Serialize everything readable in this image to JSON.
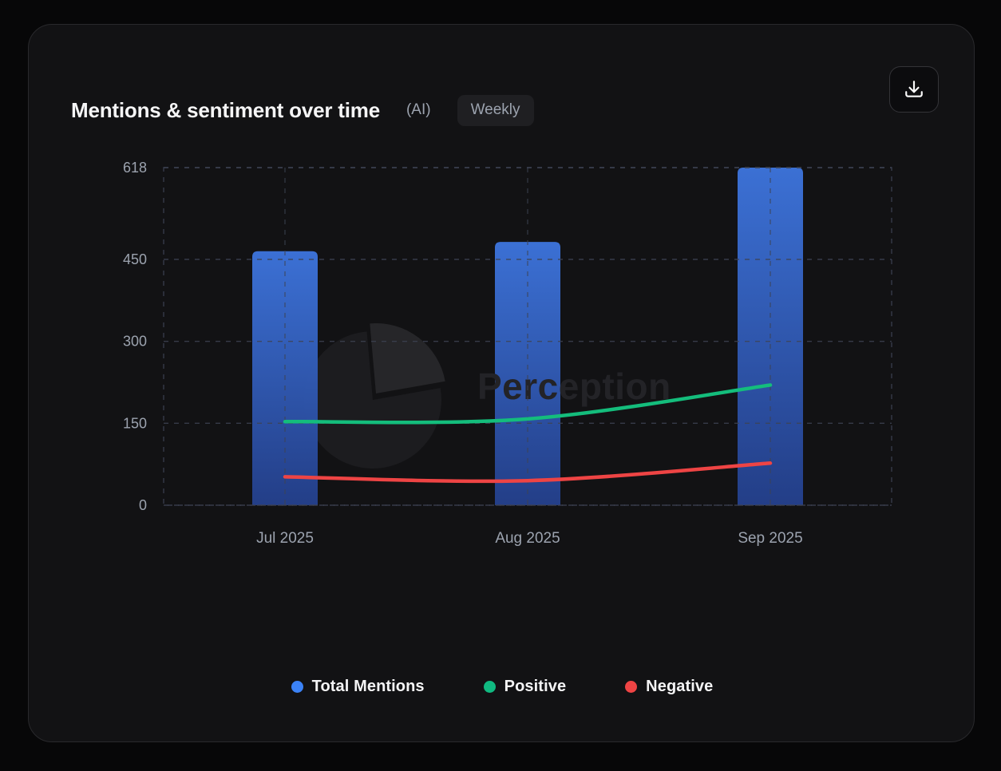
{
  "card": {
    "title": "Mentions & sentiment over time",
    "subtitle": "(AI)",
    "period_label": "Weekly",
    "download_icon": "download-icon"
  },
  "watermark": {
    "text": "Perception",
    "icon": "pie-chart-logo"
  },
  "legend": [
    {
      "label": "Total Mentions",
      "color": "#3b82f6"
    },
    {
      "label": "Positive",
      "color": "#10b981"
    },
    {
      "label": "Negative",
      "color": "#ef4444"
    }
  ],
  "chart_data": {
    "type": "bar",
    "subtype": "bar-and-line-combo",
    "categories": [
      "Jul 2025",
      "Aug 2025",
      "Sep 2025"
    ],
    "series": [
      {
        "name": "Total Mentions",
        "type": "bar",
        "values": [
          465,
          482,
          618
        ],
        "color_top": "#3d74dc",
        "color_bottom": "#24408c"
      },
      {
        "name": "Positive",
        "type": "line",
        "values": [
          153,
          158,
          220
        ],
        "color": "#14bd7c"
      },
      {
        "name": "Negative",
        "type": "line",
        "values": [
          52,
          45,
          77
        ],
        "color": "#ee4444"
      }
    ],
    "title": "Mentions & sentiment over time",
    "xlabel": "",
    "ylabel": "",
    "ylim": [
      0,
      618
    ],
    "yticks": [
      0,
      150,
      300,
      450,
      618
    ],
    "grid": "dashed",
    "grid_color": "#3d4352",
    "axis_text_color": "#9ca3af",
    "legend_position": "bottom"
  }
}
